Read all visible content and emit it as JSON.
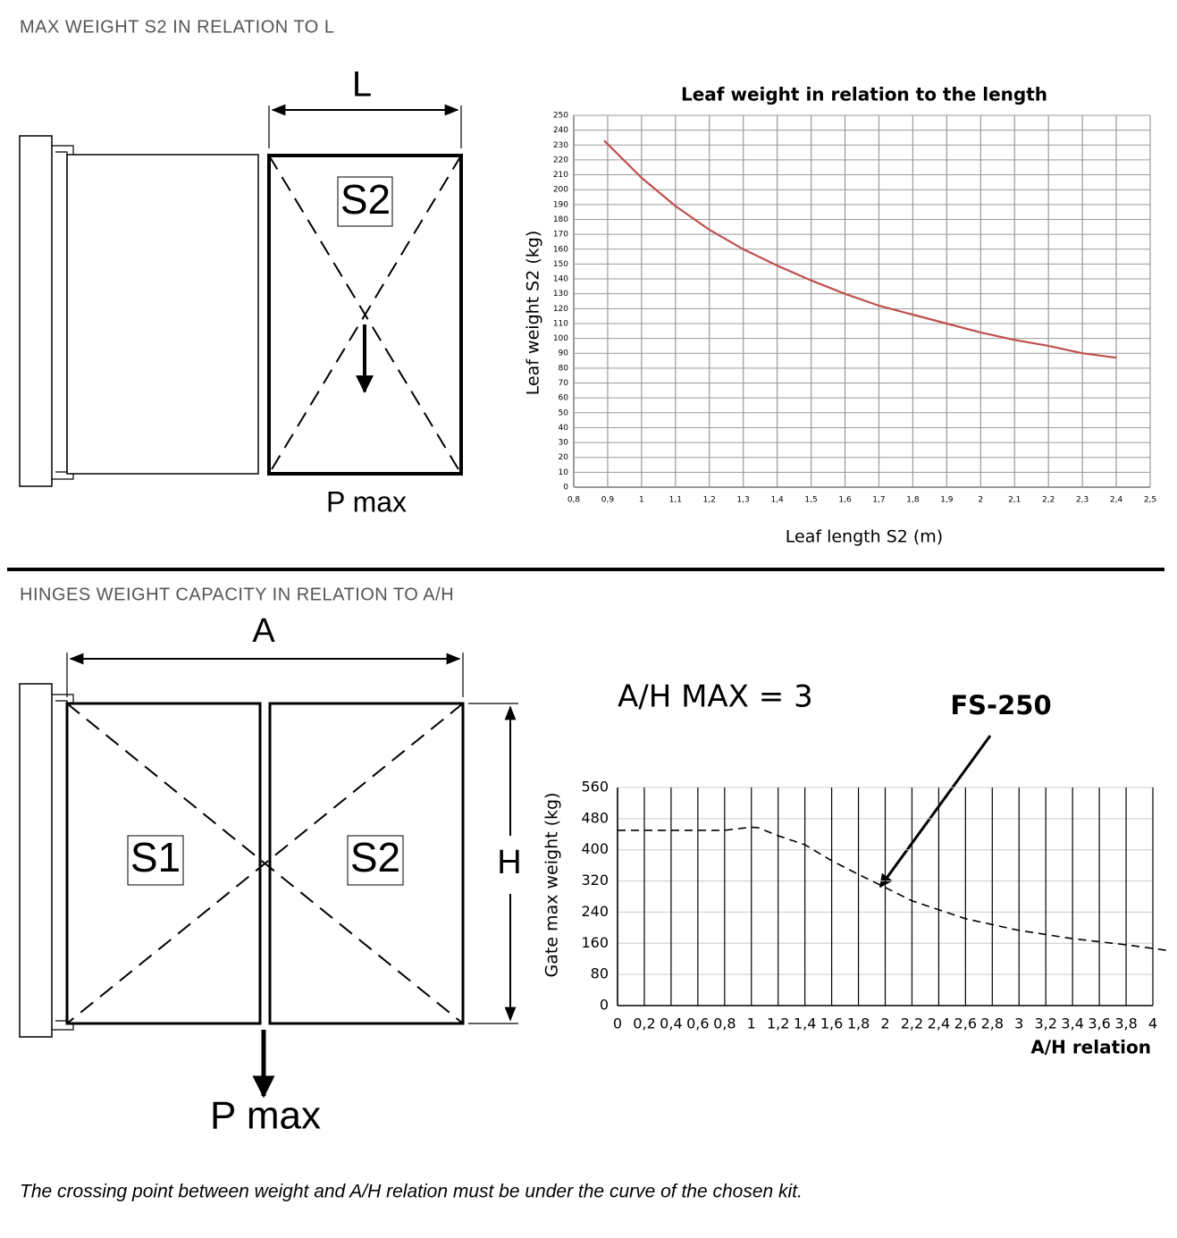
{
  "sections": [
    {
      "title": "MAX WEIGHT S2 IN RELATION TO L",
      "labels": [
        "L",
        "S2",
        "P max"
      ]
    },
    {
      "title": "HINGES WEIGHT CAPACITY IN RELATION TO A/H",
      "labels": [
        "A",
        "S1",
        "S2",
        "H",
        "P max"
      ]
    }
  ],
  "chart_data": [
    {
      "type": "line",
      "title": "Leaf weight in relation to the length",
      "x_label": "Leaf length S2 (m)",
      "y_label": "Leaf weight S2 (kg)",
      "x": [
        0.89,
        1,
        1.1,
        1.2,
        1.3,
        1.4,
        1.5,
        1.6,
        1.7,
        1.8,
        1.9,
        2,
        2.1,
        2.2,
        2.3,
        2.4
      ],
      "values": [
        233,
        208,
        189,
        173,
        160,
        149,
        139,
        130,
        122,
        116,
        110,
        104,
        99,
        95,
        90,
        87
      ],
      "color": "#c0504d",
      "line_style": "solid",
      "xlim": [
        0.8,
        2.5
      ],
      "xticks": [
        {
          "value": 0.8,
          "label": "0,8"
        },
        {
          "value": 0.9,
          "label": "0,9"
        },
        1,
        {
          "value": 1.1,
          "label": "1,1"
        },
        {
          "value": 1.2,
          "label": "1,2"
        },
        {
          "value": 1.3,
          "label": "1,3"
        },
        {
          "value": 1.4,
          "label": "1,4"
        },
        {
          "value": 1.5,
          "label": "1,5"
        },
        {
          "value": 1.6,
          "label": "1,6"
        },
        {
          "value": 1.7,
          "label": "1,7"
        },
        {
          "value": 1.8,
          "label": "1,8"
        },
        {
          "value": 1.9,
          "label": "1,9"
        },
        2,
        {
          "value": 2.1,
          "label": "2,1"
        },
        {
          "value": 2.2,
          "label": "2,2"
        },
        {
          "value": 2.3,
          "label": "2,3"
        },
        {
          "value": 2.4,
          "label": "2,4"
        },
        {
          "value": 2.5,
          "label": "2,5"
        }
      ],
      "ylim": [
        0,
        250
      ],
      "yticks": [
        0,
        10,
        20,
        30,
        40,
        50,
        60,
        70,
        80,
        90,
        100,
        110,
        120,
        130,
        140,
        150,
        160,
        170,
        180,
        190,
        200,
        210,
        220,
        230,
        240,
        250
      ],
      "grid": true,
      "xgrid_color": "#9a9a9a",
      "ygrid_color": "#9a9a9a"
    },
    {
      "type": "line",
      "annotations": [
        "A/H MAX = 3",
        "FS-250"
      ],
      "x_label": "A/H relation",
      "y_label": "Gate max weight (kg)",
      "x": [
        0,
        0.2,
        0.4,
        0.6,
        0.8,
        1,
        1.05,
        1.2,
        1.4,
        1.6,
        1.8,
        1.96,
        2.2,
        2.6,
        3,
        3.4,
        3.8,
        4.1
      ],
      "values": [
        450,
        450,
        450,
        450,
        450,
        458,
        457,
        436,
        413,
        372,
        337,
        310,
        269,
        223,
        193,
        172,
        156,
        142
      ],
      "color": "#000000",
      "line_style": "dashed",
      "xlim": [
        0,
        4
      ],
      "xticks": [
        0,
        {
          "value": 0.2,
          "label": "0,2"
        },
        {
          "value": 0.4,
          "label": "0,4"
        },
        {
          "value": 0.6,
          "label": "0,6"
        },
        {
          "value": 0.8,
          "label": "0,8"
        },
        1,
        {
          "value": 1.2,
          "label": "1,2"
        },
        {
          "value": 1.4,
          "label": "1,4"
        },
        {
          "value": 1.6,
          "label": "1,6"
        },
        {
          "value": 1.8,
          "label": "1,8"
        },
        2,
        {
          "value": 2.2,
          "label": "2,2"
        },
        {
          "value": 2.4,
          "label": "2,4"
        },
        {
          "value": 2.6,
          "label": "2,6"
        },
        {
          "value": 2.8,
          "label": "2,8"
        },
        3,
        {
          "value": 3.2,
          "label": "3,2"
        },
        {
          "value": 3.4,
          "label": "3,4"
        },
        {
          "value": 3.6,
          "label": "3,6"
        },
        {
          "value": 3.8,
          "label": "3,8"
        },
        4
      ],
      "ylim": [
        0,
        560
      ],
      "yticks": [
        0,
        80,
        160,
        240,
        320,
        400,
        480,
        560
      ],
      "grid": true,
      "xgrid_color": "#000000",
      "ygrid_color": "#cccccc"
    }
  ],
  "footnote": "The crossing point between weight and A/H relation must be under the curve of the chosen kit."
}
